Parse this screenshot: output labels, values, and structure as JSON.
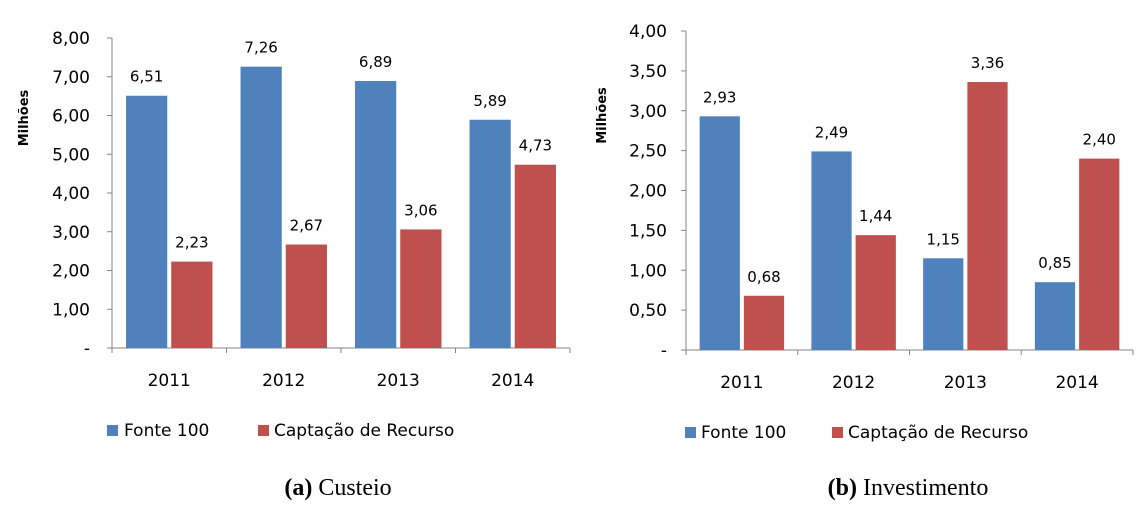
{
  "chart_data": [
    {
      "type": "bar",
      "ylabel": "Milhões",
      "categories": [
        "2011",
        "2012",
        "2013",
        "2014"
      ],
      "ylim": [
        0,
        8
      ],
      "ytick_labels": [
        "-",
        "1,00",
        "2,00",
        "3,00",
        "4,00",
        "5,00",
        "6,00",
        "7,00",
        "8,00"
      ],
      "series": [
        {
          "name": "Fonte 100",
          "values": [
            6.51,
            7.26,
            6.89,
            5.89
          ],
          "labels": [
            "6,51",
            "7,26",
            "6,89",
            "5,89"
          ],
          "color": "#4F81BD"
        },
        {
          "name": "Captação de Recurso",
          "values": [
            2.23,
            2.67,
            3.06,
            4.73
          ],
          "labels": [
            "2,23",
            "2,67",
            "3,06",
            "4,73"
          ],
          "color": "#C0504D"
        }
      ],
      "caption_letter": "(a)",
      "caption_text": "Custeio"
    },
    {
      "type": "bar",
      "ylabel": "Milhões",
      "categories": [
        "2011",
        "2012",
        "2013",
        "2014"
      ],
      "ylim": [
        0,
        4
      ],
      "ytick_labels": [
        "-",
        "0,50",
        "1,00",
        "1,50",
        "2,00",
        "2,50",
        "3,00",
        "3,50",
        "4,00"
      ],
      "series": [
        {
          "name": "Fonte 100",
          "values": [
            2.93,
            2.49,
            1.15,
            0.85
          ],
          "labels": [
            "2,93",
            "2,49",
            "1,15",
            "0,85"
          ],
          "color": "#4F81BD"
        },
        {
          "name": "Captação de Recurso",
          "values": [
            0.68,
            1.44,
            3.36,
            2.4
          ],
          "labels": [
            "0,68",
            "1,44",
            "3,36",
            "2,40"
          ],
          "color": "#C0504D"
        }
      ],
      "caption_letter": "(b)",
      "caption_text": "Investimento"
    }
  ]
}
